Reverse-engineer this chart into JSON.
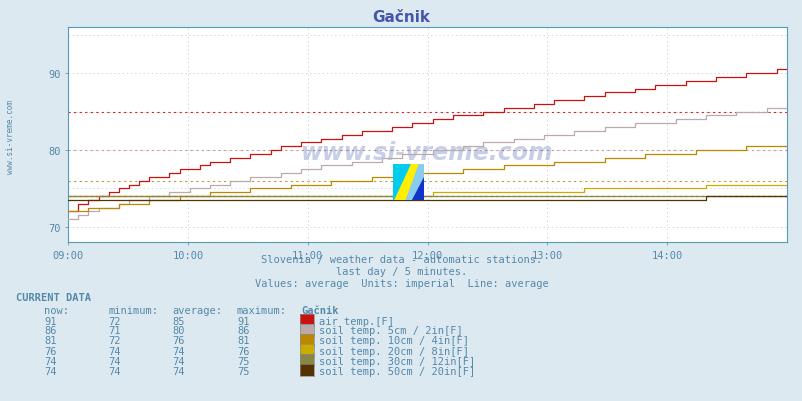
{
  "title": "Gačnik",
  "subtitle1": "Slovenia / weather data - automatic stations.",
  "subtitle2": "last day / 5 minutes.",
  "subtitle3": "Values: average  Units: imperial  Line: average",
  "bg_color": "#dce9f0",
  "plot_bg_color": "#ffffff",
  "title_color": "#4455aa",
  "subtitle_color": "#5588aa",
  "text_color": "#5588aa",
  "axis_color": "#5599bb",
  "watermark": "www.si-vreme.com",
  "watermark_color": "#3355aa",
  "sidebar_text": "www.si-vreme.com",
  "x_ticks": [
    "09:00",
    "10:00",
    "11:00",
    "12:00",
    "13:00",
    "14:00"
  ],
  "y_ticks": [
    70,
    80,
    90
  ],
  "y_min": 68,
  "y_max": 96,
  "total_minutes": 360,
  "avg_values": [
    85,
    80,
    76,
    74,
    74,
    74
  ],
  "avg_colors": [
    "#dd2222",
    "#cc9999",
    "#bb9933",
    "#ccaa33",
    "#888855",
    "#664422"
  ],
  "series_colors": [
    "#cc1111",
    "#bbaaaa",
    "#bb8800",
    "#ccaa00",
    "#888844",
    "#553300"
  ],
  "series_starts": [
    72,
    71,
    72,
    74,
    74,
    73.7
  ],
  "series_ends": [
    91,
    86,
    81,
    76,
    74.5,
    74.2
  ],
  "series_powers": [
    0.65,
    0.72,
    0.78,
    2.0,
    3.0,
    3.5
  ],
  "current_data_header": "CURRENT DATA",
  "table_headers": [
    "now:",
    "minimum:",
    "average:",
    "maximum:",
    "Gačnik"
  ],
  "table_color": "#5588aa",
  "legend_colors": [
    "#cc1111",
    "#bbaaaa",
    "#bb8800",
    "#ccaa00",
    "#888844",
    "#553300"
  ],
  "legend_labels": [
    "air temp.[F]",
    "soil temp. 5cm / 2in[F]",
    "soil temp. 10cm / 4in[F]",
    "soil temp. 20cm / 8in[F]",
    "soil temp. 30cm / 12in[F]",
    "soil temp. 50cm / 20in[F]"
  ],
  "table_rows": [
    [
      91,
      72,
      85,
      91
    ],
    [
      86,
      71,
      80,
      86
    ],
    [
      81,
      72,
      76,
      81
    ],
    [
      76,
      74,
      74,
      76
    ],
    [
      74,
      74,
      74,
      75
    ],
    [
      74,
      74,
      74,
      75
    ]
  ]
}
